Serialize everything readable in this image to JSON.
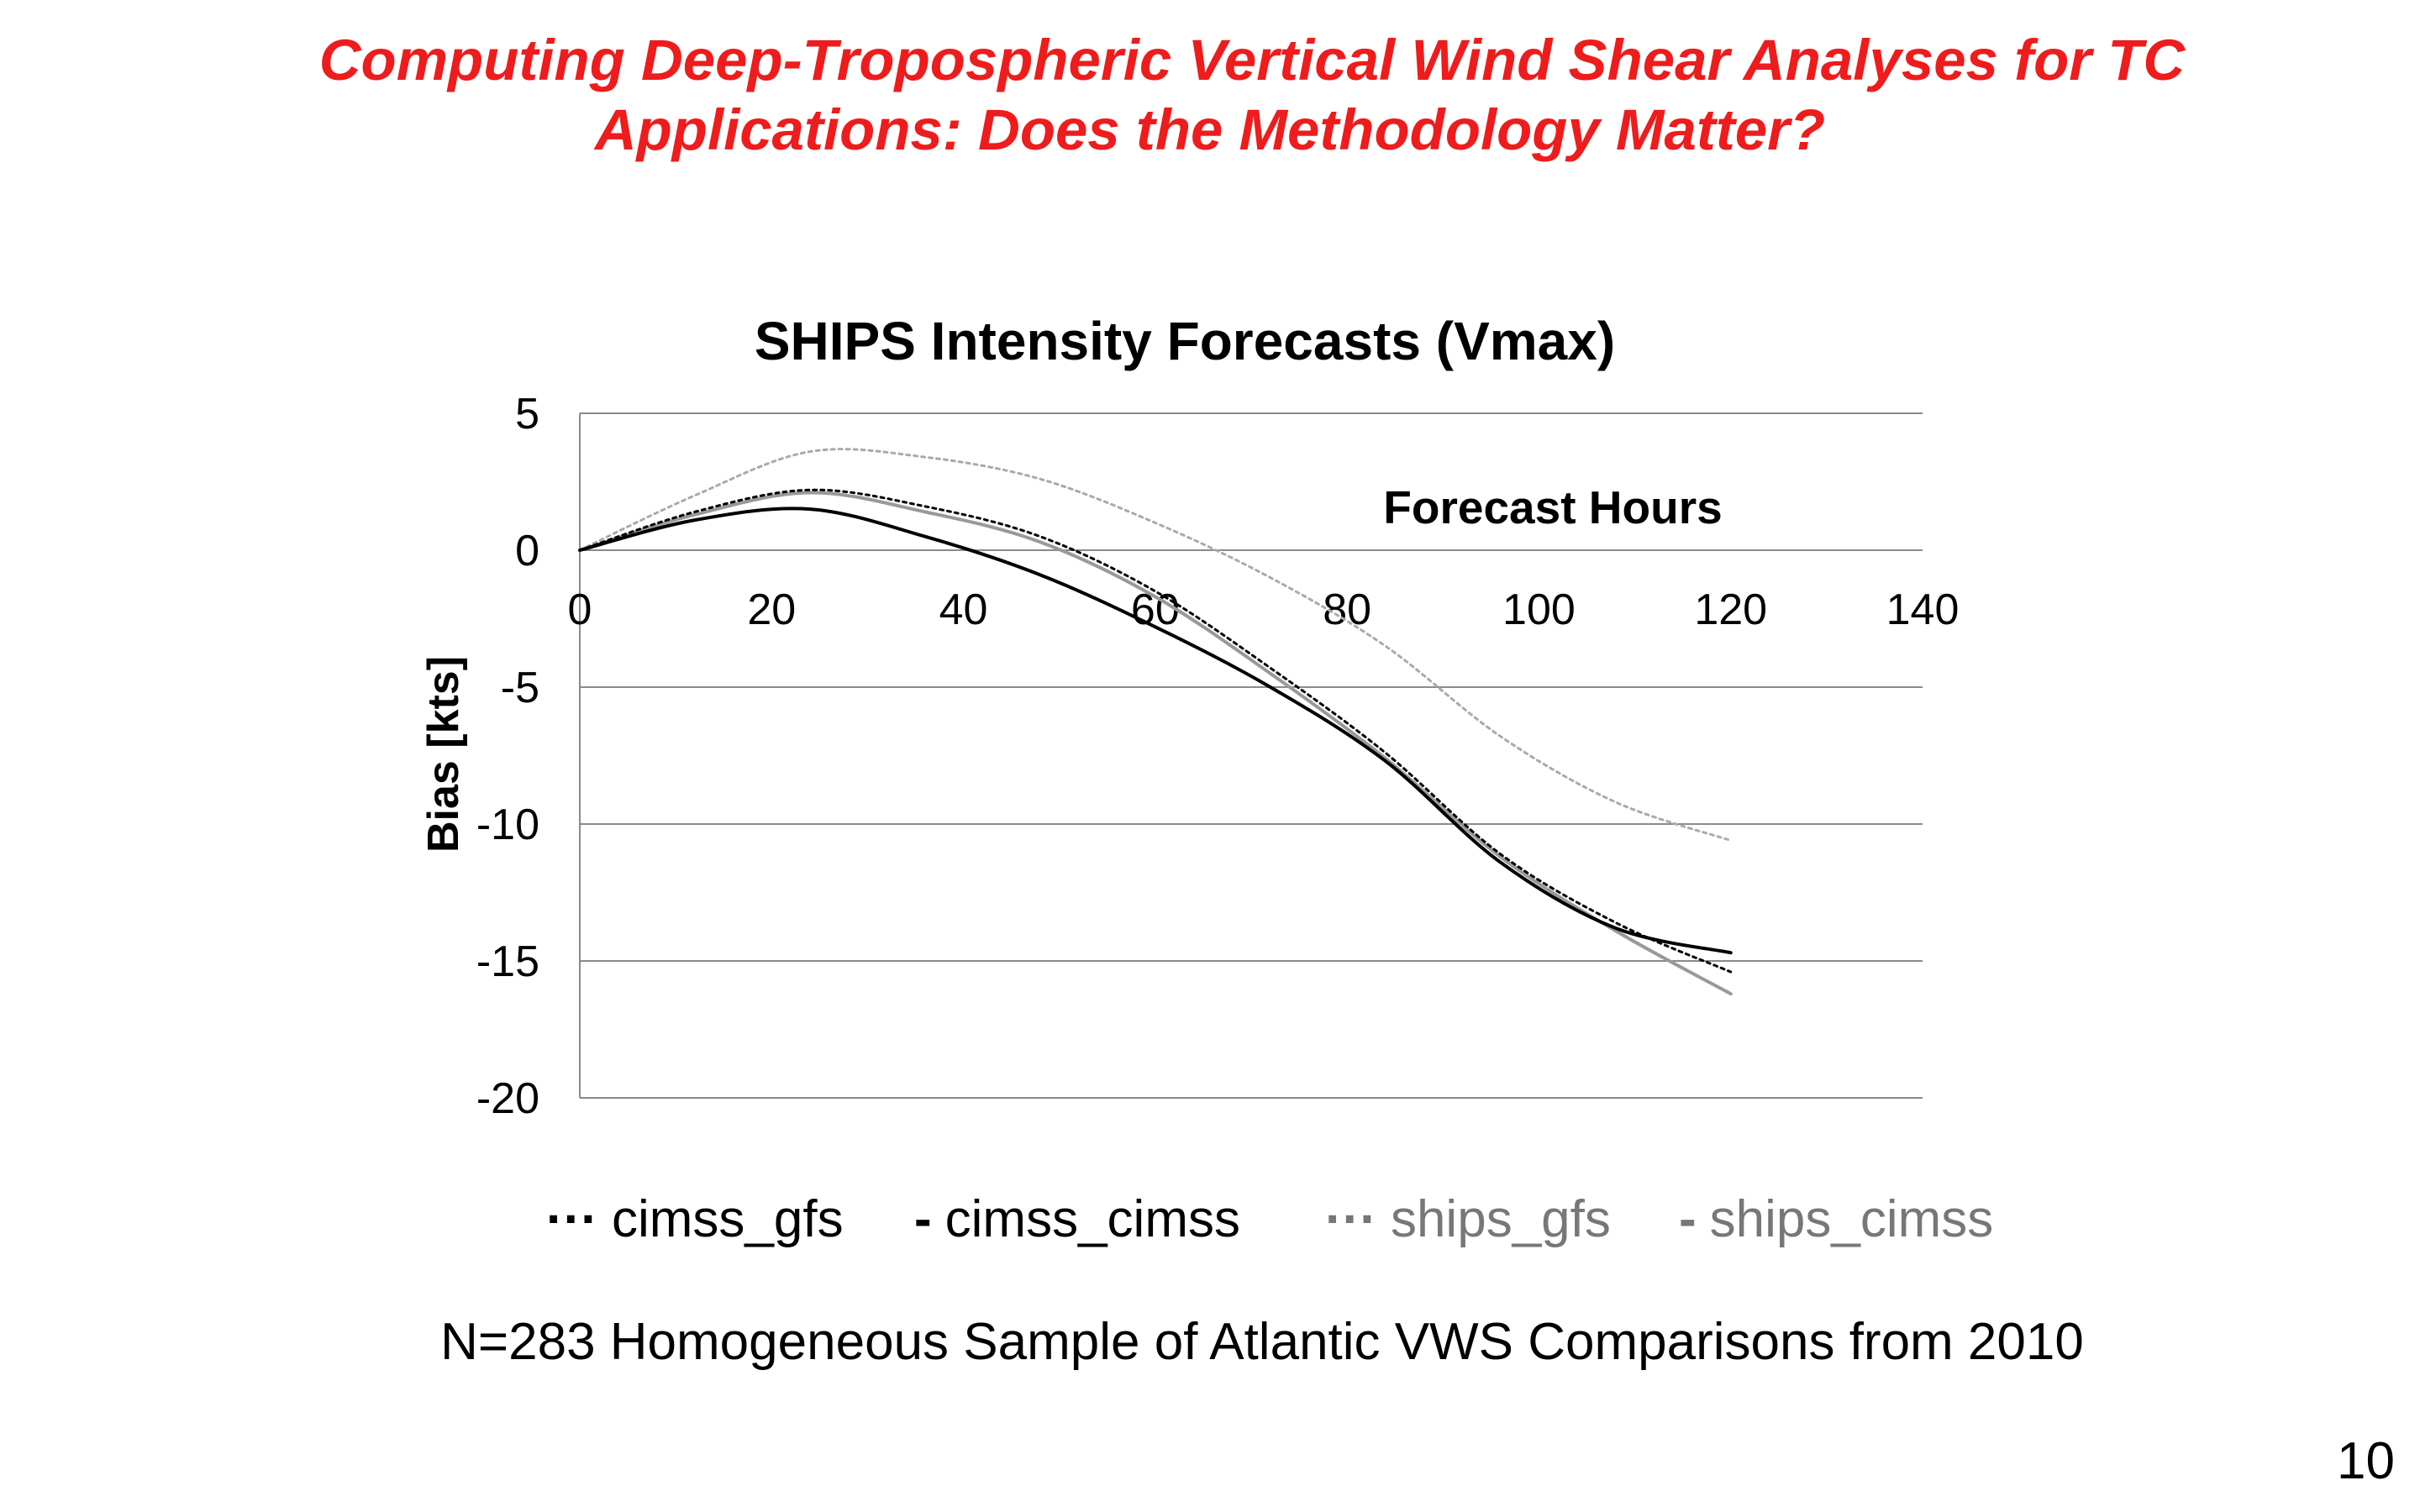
{
  "slide": {
    "title_line1": "Computing Deep-Tropospheric Vertical Wind Shear Analyses for TC",
    "title_line2": "Applications: Does the Methodology Matter?",
    "footnote": "N=283  Homogeneous Sample of Atlantic VWS Comparisons from 2010",
    "page_number": "10",
    "title_color": "#ee1c1c"
  },
  "chart_data": {
    "type": "line",
    "title": "SHIPS Intensity Forecasts (Vmax)",
    "xlabel": "Forecast Hours",
    "ylabel": "Bias [kts]",
    "xlim": [
      0,
      140
    ],
    "ylim": [
      -20,
      5
    ],
    "xticks": [
      0,
      20,
      40,
      60,
      80,
      100,
      120,
      140
    ],
    "yticks": [
      5,
      0,
      -5,
      -10,
      -15,
      -20
    ],
    "grid": "horizontal",
    "legend_position": "bottom",
    "x": [
      0,
      12,
      24,
      36,
      48,
      60,
      72,
      84,
      96,
      108,
      120
    ],
    "series": [
      {
        "name": "cimss_gfs",
        "color": "#000000",
        "dash": "dotted",
        "values": [
          0,
          1.4,
          2.2,
          1.6,
          0.5,
          -1.5,
          -4.3,
          -7.4,
          -11.1,
          -13.6,
          -15.4
        ]
      },
      {
        "name": "cimss_cimss",
        "color": "#000000",
        "dash": "solid",
        "values": [
          0,
          1.1,
          1.5,
          0.5,
          -0.9,
          -2.8,
          -5.0,
          -7.7,
          -11.4,
          -13.8,
          -14.7
        ]
      },
      {
        "name": "ships_gfs",
        "color": "#aaaaaa",
        "dash": "dotted",
        "values": [
          0,
          2.0,
          3.6,
          3.4,
          2.6,
          1.0,
          -1.0,
          -3.5,
          -6.8,
          -9.2,
          -10.6
        ]
      },
      {
        "name": "ships_cimss",
        "color": "#999999",
        "dash": "solid",
        "values": [
          0,
          1.3,
          2.1,
          1.4,
          0.3,
          -1.7,
          -4.5,
          -7.6,
          -11.2,
          -13.9,
          -16.2
        ]
      }
    ]
  },
  "legend": {
    "items": [
      {
        "label": "cimss_gfs",
        "marker": "···",
        "color": "#000000"
      },
      {
        "label": "cimss_cimss",
        "marker": "-",
        "color": "#000000"
      },
      {
        "label": "ships_gfs",
        "marker": "···",
        "color": "#777777"
      },
      {
        "label": "ships_cimss",
        "marker": "-",
        "color": "#777777"
      }
    ]
  }
}
